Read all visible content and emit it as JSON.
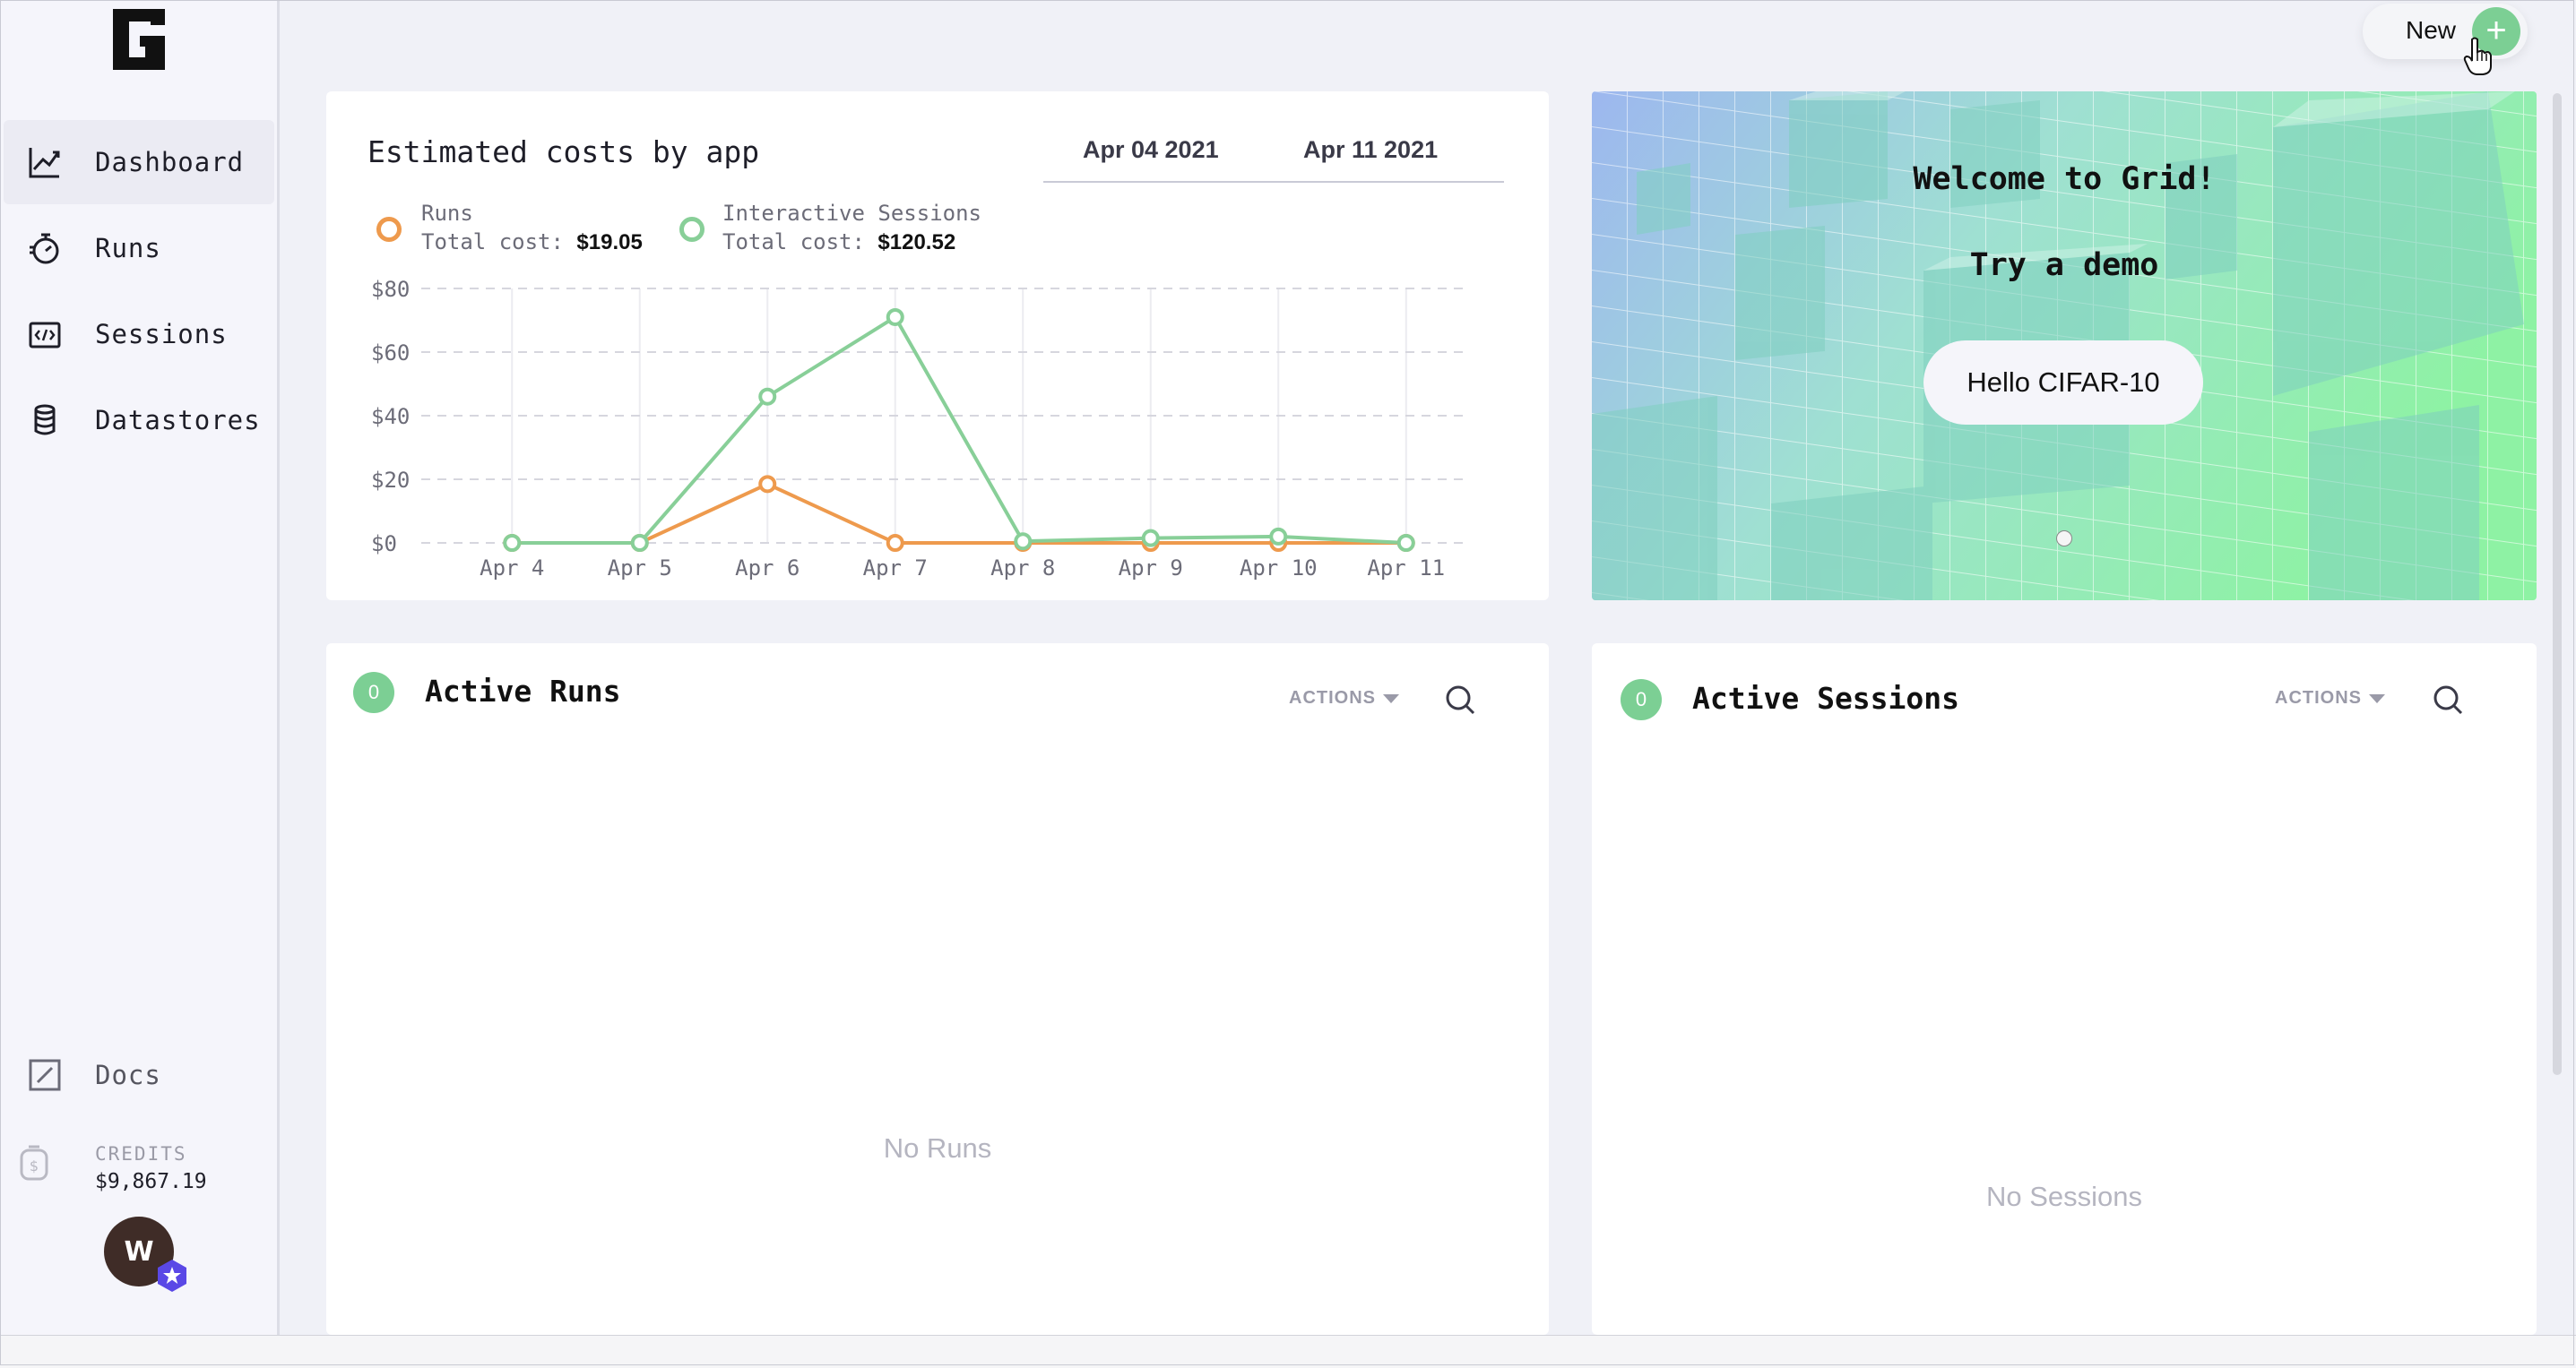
{
  "sidebar": {
    "items": [
      {
        "label": "Dashboard",
        "icon": "chart-line-icon",
        "active": true
      },
      {
        "label": "Runs",
        "icon": "stopwatch-icon"
      },
      {
        "label": "Sessions",
        "icon": "code-window-icon"
      },
      {
        "label": "Datastores",
        "icon": "database-icon"
      }
    ],
    "docs_label": "Docs",
    "credits_label": "CREDITS",
    "credits_value": "$9,867.19",
    "avatar_initial": "W"
  },
  "header": {
    "new_label": "New",
    "new_icon": "+"
  },
  "cost_card": {
    "title": "Estimated costs by app",
    "date_from": "Apr 04 2021",
    "date_to": "Apr 11 2021",
    "legend": [
      {
        "name": "Runs",
        "cost_label": "Total cost:",
        "cost": "$19.05",
        "color": "#ee9a4d"
      },
      {
        "name": "Interactive Sessions",
        "cost_label": "Total cost:",
        "cost": "$120.52",
        "color": "#88cf98"
      }
    ]
  },
  "chart_data": {
    "type": "line",
    "x": [
      "Apr 4",
      "Apr 5",
      "Apr 6",
      "Apr 7",
      "Apr 8",
      "Apr 9",
      "Apr 10",
      "Apr 11"
    ],
    "series": [
      {
        "name": "Runs",
        "color": "#ee9a4d",
        "values": [
          0,
          0,
          18.5,
          0,
          0,
          0,
          0,
          0
        ]
      },
      {
        "name": "Interactive Sessions",
        "color": "#88cf98",
        "values": [
          0,
          0,
          46,
          71,
          0.5,
          1.5,
          2,
          0
        ]
      }
    ],
    "y_ticks": [
      "$0",
      "$20",
      "$40",
      "$60",
      "$80"
    ],
    "ylim": [
      0,
      80
    ],
    "grid": true
  },
  "welcome": {
    "title": "Welcome to Grid!",
    "subtitle": "Try a demo",
    "button_label": "Hello CIFAR-10"
  },
  "runs_panel": {
    "count": "0",
    "title": "Active Runs",
    "actions_label": "ACTIONS",
    "empty_text": "No Runs"
  },
  "sessions_panel": {
    "count": "0",
    "title": "Active Sessions",
    "actions_label": "ACTIONS",
    "empty_text": "No Sessions"
  }
}
